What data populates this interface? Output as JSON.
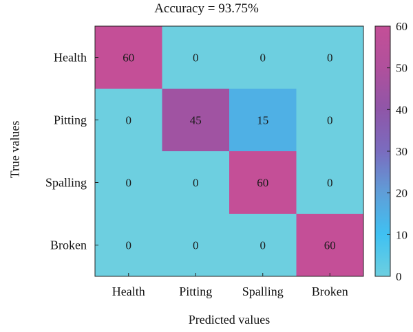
{
  "chart_data": {
    "type": "heatmap",
    "title": "Accuracy = 93.75%",
    "xlabel": "Predicted values",
    "ylabel": "True values",
    "x_categories": [
      "Health",
      "Pitting",
      "Spalling",
      "Broken"
    ],
    "y_categories": [
      "Health",
      "Pitting",
      "Spalling",
      "Broken"
    ],
    "values": [
      [
        60,
        0,
        0,
        0
      ],
      [
        0,
        45,
        15,
        0
      ],
      [
        0,
        0,
        60,
        0
      ],
      [
        0,
        0,
        0,
        60
      ]
    ],
    "colorbar": {
      "range": [
        0,
        60
      ],
      "ticks": [
        "0",
        "10",
        "20",
        "30",
        "40",
        "50",
        "60"
      ],
      "colors": [
        "#6dcfe0",
        "#3fc1f2",
        "#5f9ed8",
        "#7a6cbf",
        "#8f56a8",
        "#b0509c",
        "#c44f97"
      ]
    }
  }
}
